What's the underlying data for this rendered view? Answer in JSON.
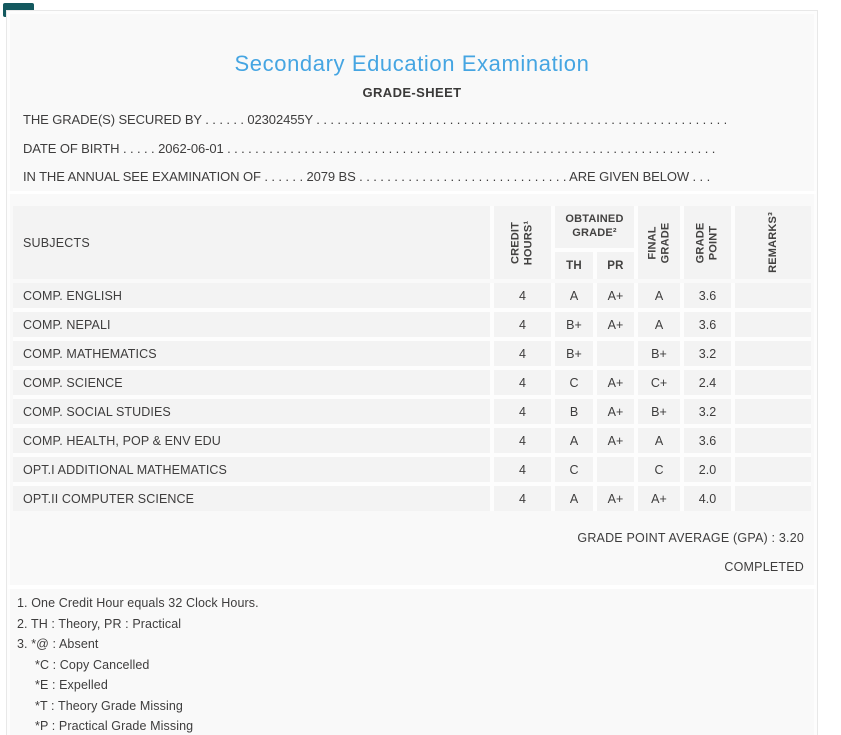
{
  "colors": {
    "badge": "#14595f",
    "accent": "#45a5e2"
  },
  "header": {
    "title": "Secondary Education Examination",
    "subtitle": "GRADE-SHEET"
  },
  "student": {
    "lines": [
      "THE GRADE(S) SECURED BY . . . . . . 02302455Y . . . . . . . . . . . . . . . . . . . . . . . . . . . . . . . . . . . . . . . . . . . . . . . . . . . . . . . . . . . .",
      "DATE OF BIRTH . . . . . 2062-06-01 . . . . . . . . . . . . . . . . . . . . . . . . . . . . . . . . . . . . . . . . . . . . . . . . . . . . . . . . . . . . . . . . . . . . . .",
      "IN THE ANNUAL SEE EXAMINATION OF . . . . . . 2079 BS . . . . . . . . . . . . . . . . . . . . . . . . . . . . . . ARE GIVEN BELOW . . ."
    ]
  },
  "table": {
    "headers": {
      "subjects": "SUBJECTS",
      "credit_hours": "CREDIT\nHOURS¹",
      "obtained_grade": "OBTAINED\nGRADE²",
      "theory": "TH",
      "practical": "PR",
      "final_grade": "FINAL\nGRADE",
      "grade_point": "GRADE\nPOINT",
      "remarks": "REMARKS³"
    },
    "rows": [
      {
        "subject": "COMP. ENGLISH",
        "credit": "4",
        "th": "A",
        "pr": "A+",
        "final": "A",
        "grade_point": "3.6",
        "remarks": ""
      },
      {
        "subject": "COMP. NEPALI",
        "credit": "4",
        "th": "B+",
        "pr": "A+",
        "final": "A",
        "grade_point": "3.6",
        "remarks": ""
      },
      {
        "subject": "COMP. MATHEMATICS",
        "credit": "4",
        "th": "B+",
        "pr": "",
        "final": "B+",
        "grade_point": "3.2",
        "remarks": ""
      },
      {
        "subject": "COMP. SCIENCE",
        "credit": "4",
        "th": "C",
        "pr": "A+",
        "final": "C+",
        "grade_point": "2.4",
        "remarks": ""
      },
      {
        "subject": "COMP. SOCIAL STUDIES",
        "credit": "4",
        "th": "B",
        "pr": "A+",
        "final": "B+",
        "grade_point": "3.2",
        "remarks": ""
      },
      {
        "subject": "COMP. HEALTH, POP & ENV EDU",
        "credit": "4",
        "th": "A",
        "pr": "A+",
        "final": "A",
        "grade_point": "3.6",
        "remarks": ""
      },
      {
        "subject": "OPT.I ADDITIONAL MATHEMATICS",
        "credit": "4",
        "th": "C",
        "pr": "",
        "final": "C",
        "grade_point": "2.0",
        "remarks": ""
      },
      {
        "subject": "OPT.II COMPUTER SCIENCE",
        "credit": "4",
        "th": "A",
        "pr": "A+",
        "final": "A+",
        "grade_point": "4.0",
        "remarks": ""
      }
    ]
  },
  "summary": {
    "gpa_line": "GRADE POINT AVERAGE (GPA) : 3.20",
    "status": "COMPLETED"
  },
  "footnotes": [
    {
      "text": "1. One Credit Hour equals 32 Clock Hours.",
      "indent": false
    },
    {
      "text": "2. TH : Theory, PR : Practical",
      "indent": false
    },
    {
      "text": "3. *@ : Absent",
      "indent": false
    },
    {
      "text": "*C : Copy Cancelled",
      "indent": true
    },
    {
      "text": "*E : Expelled",
      "indent": true
    },
    {
      "text": "*T : Theory Grade Missing",
      "indent": true
    },
    {
      "text": "*P : Practical Grade Missing",
      "indent": true
    }
  ]
}
